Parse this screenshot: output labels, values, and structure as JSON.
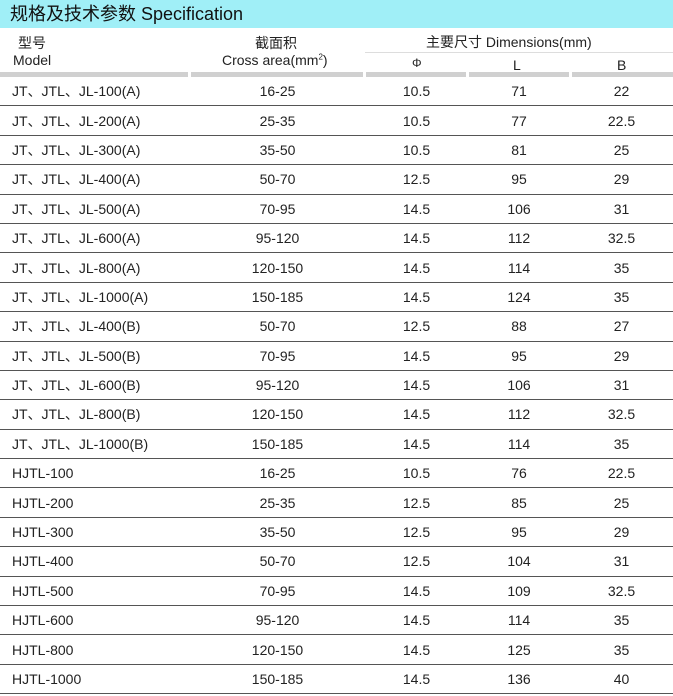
{
  "title": "规格及技术参数  Specification",
  "header": {
    "model_cn": "型号",
    "model_en": "Model",
    "area_cn": "截面积",
    "area_en": "Cross area(mm",
    "area_sup": "2",
    "area_close": ")",
    "dims": "主要尺寸  Dimensions(mm)",
    "phi": "Φ",
    "L": "L",
    "B": "B"
  },
  "rows": [
    [
      "JT、JTL、JL-100(A)",
      "16-25",
      "10.5",
      "71",
      "22"
    ],
    [
      "JT、JTL、JL-200(A)",
      "25-35",
      "10.5",
      "77",
      "22.5"
    ],
    [
      "JT、JTL、JL-300(A)",
      "35-50",
      "10.5",
      "81",
      "25"
    ],
    [
      "JT、JTL、JL-400(A)",
      "50-70",
      "12.5",
      "95",
      "29"
    ],
    [
      "JT、JTL、JL-500(A)",
      "70-95",
      "14.5",
      "106",
      "31"
    ],
    [
      "JT、JTL、JL-600(A)",
      "95-120",
      "14.5",
      "112",
      "32.5"
    ],
    [
      "JT、JTL、JL-800(A)",
      "120-150",
      "14.5",
      "114",
      "35"
    ],
    [
      "JT、JTL、JL-1000(A)",
      "150-185",
      "14.5",
      "124",
      "35"
    ],
    [
      "JT、JTL、JL-400(B)",
      "50-70",
      "12.5",
      "88",
      "27"
    ],
    [
      "JT、JTL、JL-500(B)",
      "70-95",
      "14.5",
      "95",
      "29"
    ],
    [
      "JT、JTL、JL-600(B)",
      "95-120",
      "14.5",
      "106",
      "31"
    ],
    [
      "JT、JTL、JL-800(B)",
      "120-150",
      "14.5",
      "112",
      "32.5"
    ],
    [
      "JT、JTL、JL-1000(B)",
      "150-185",
      "14.5",
      "114",
      "35"
    ],
    [
      "HJTL-100",
      "16-25",
      "10.5",
      "76",
      "22.5"
    ],
    [
      "HJTL-200",
      "25-35",
      "12.5",
      "85",
      "25"
    ],
    [
      "HJTL-300",
      "35-50",
      "12.5",
      "95",
      "29"
    ],
    [
      "HJTL-400",
      "50-70",
      "12.5",
      "104",
      "31"
    ],
    [
      "HJTL-500",
      "70-95",
      "14.5",
      "109",
      "32.5"
    ],
    [
      "HJTL-600",
      "95-120",
      "14.5",
      "114",
      "35"
    ],
    [
      "HJTL-800",
      "120-150",
      "14.5",
      "125",
      "35"
    ],
    [
      "HJTL-1000",
      "150-185",
      "14.5",
      "136",
      "40"
    ]
  ]
}
